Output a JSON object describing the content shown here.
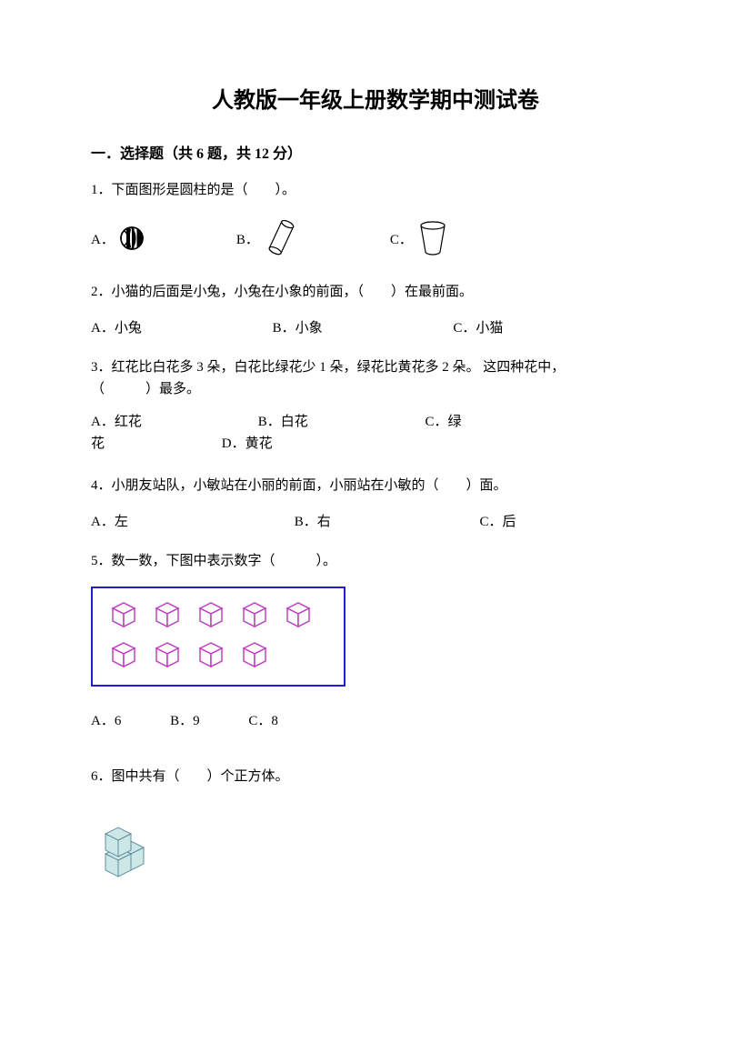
{
  "title": "人教版一年级上册数学期中测试卷",
  "section1": {
    "header": "一．选择题（共 6 题，共 12 分）"
  },
  "q1": {
    "text": "1．下面图形是圆柱的是（　　）。",
    "a": "A．",
    "b": "B．",
    "c": "C．"
  },
  "q2": {
    "text": "2．小猫的后面是小兔，小兔在小象的前面，（　　）在最前面。",
    "a": "A．小兔",
    "b": "B．小象",
    "c": "C．小猫"
  },
  "q3": {
    "line1": "3．红花比白花多 3 朵，白花比绿花少 1 朵，绿花比黄花多 2 朵。 这四种花中，",
    "line2": "（　　　）最多。",
    "a": "A．红花",
    "b": "B．白花",
    "c": "C．绿",
    "c_line2": "花",
    "d": "D．黄花"
  },
  "q4": {
    "text": "4．小朋友站队，小敏站在小丽的前面，小丽站在小敏的（　　）面。",
    "a": "A．左",
    "b": "B．右",
    "c": "C．后"
  },
  "q5": {
    "text": "5．数一数，下图中表示数字（　　　）。",
    "a": "A．6",
    "b": "B．9",
    "c": "C．8",
    "cube_color": "#c040c0",
    "box_border": "#2020d0",
    "row1_count": 5,
    "row2_count": 4
  },
  "q6": {
    "text": "6．图中共有（　　）个正方体。",
    "cube_fill": "#cde6e6",
    "cube_stroke": "#6090a0"
  },
  "colors": {
    "text": "#000000",
    "bg": "#ffffff"
  }
}
